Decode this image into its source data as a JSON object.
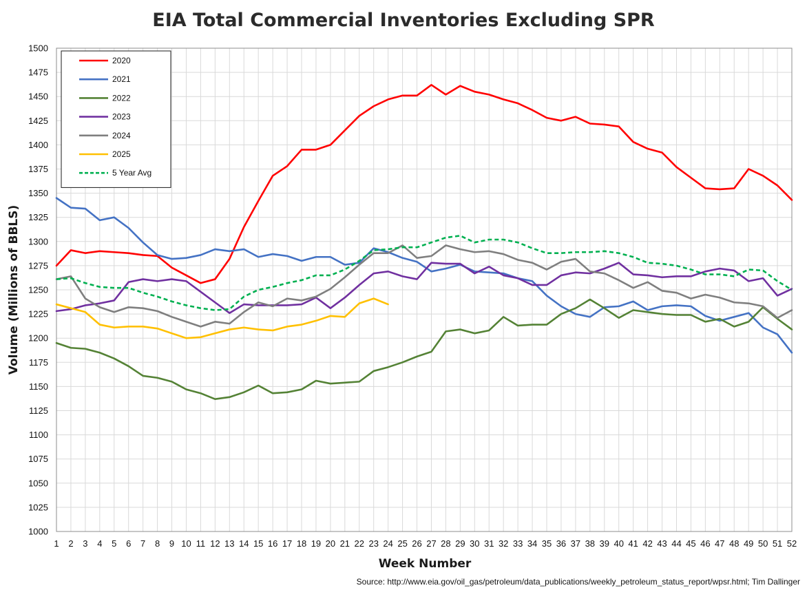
{
  "chart_data": {
    "type": "line",
    "title": "EIA Total Commercial Inventories Excluding SPR",
    "xlabel": "Week Number",
    "ylabel": "Volume (Millions of BBLS)",
    "source": "Source: http://www.eia.gov/oil_gas/petroleum/data_publications/weekly_petroleum_status_report/wpsr.html; Tim Dallinger",
    "xlim": [
      1,
      52
    ],
    "ylim": [
      1000,
      1500
    ],
    "ytick_step": 25,
    "grid": true,
    "legend_position": "top-left",
    "x": [
      1,
      2,
      3,
      4,
      5,
      6,
      7,
      8,
      9,
      10,
      11,
      12,
      13,
      14,
      15,
      16,
      17,
      18,
      19,
      20,
      21,
      22,
      23,
      24,
      25,
      26,
      27,
      28,
      29,
      30,
      31,
      32,
      33,
      34,
      35,
      36,
      37,
      38,
      39,
      40,
      41,
      42,
      43,
      44,
      45,
      46,
      47,
      48,
      49,
      50,
      51,
      52
    ],
    "series": [
      {
        "name": "2020",
        "color": "#ff0000",
        "dashed": false,
        "values": [
          1275,
          1291,
          1288,
          1290,
          1289,
          1288,
          1286,
          1285,
          1273,
          1265,
          1257,
          1261,
          1282,
          1315,
          1342,
          1368,
          1378,
          1395,
          1395,
          1400,
          1415,
          1430,
          1440,
          1447,
          1451,
          1451,
          1462,
          1452,
          1461,
          1455,
          1452,
          1447,
          1443,
          1436,
          1428,
          1425,
          1429,
          1422,
          1421,
          1419,
          1403,
          1396,
          1392,
          1377,
          1366,
          1355,
          1354,
          1355,
          1375,
          1368,
          1358,
          1343
        ]
      },
      {
        "name": "2021",
        "color": "#4472c4",
        "dashed": false,
        "values": [
          1345,
          1335,
          1334,
          1322,
          1325,
          1314,
          1299,
          1286,
          1282,
          1283,
          1286,
          1292,
          1290,
          1292,
          1284,
          1287,
          1285,
          1280,
          1284,
          1284,
          1276,
          1278,
          1293,
          1289,
          1283,
          1279,
          1269,
          1272,
          1276,
          1269,
          1268,
          1267,
          1262,
          1259,
          1244,
          1233,
          1225,
          1222,
          1232,
          1233,
          1238,
          1229,
          1233,
          1234,
          1233,
          1223,
          1218,
          1222,
          1226,
          1211,
          1204,
          1185
        ]
      },
      {
        "name": "2022",
        "color": "#548235",
        "dashed": false,
        "values": [
          1195,
          1190,
          1189,
          1185,
          1179,
          1171,
          1161,
          1159,
          1155,
          1147,
          1143,
          1137,
          1139,
          1144,
          1151,
          1143,
          1144,
          1147,
          1156,
          1153,
          1154,
          1155,
          1166,
          1170,
          1175,
          1181,
          1186,
          1207,
          1209,
          1205,
          1208,
          1222,
          1213,
          1214,
          1214,
          1225,
          1231,
          1240,
          1231,
          1221,
          1229,
          1227,
          1225,
          1224,
          1224,
          1217,
          1220,
          1212,
          1217,
          1232,
          1220,
          1209
        ]
      },
      {
        "name": "2023",
        "color": "#7030a0",
        "dashed": false,
        "values": [
          1228,
          1230,
          1234,
          1236,
          1239,
          1258,
          1261,
          1259,
          1261,
          1259,
          1248,
          1237,
          1226,
          1235,
          1234,
          1234,
          1234,
          1235,
          1242,
          1231,
          1242,
          1255,
          1267,
          1269,
          1264,
          1261,
          1278,
          1277,
          1277,
          1267,
          1274,
          1265,
          1262,
          1255,
          1255,
          1265,
          1268,
          1267,
          1272,
          1278,
          1266,
          1265,
          1263,
          1264,
          1264,
          1269,
          1272,
          1270,
          1259,
          1262,
          1244,
          1251
        ]
      },
      {
        "name": "2024",
        "color": "#7f7f7f",
        "dashed": false,
        "values": [
          1261,
          1264,
          1241,
          1232,
          1227,
          1232,
          1231,
          1228,
          1222,
          1217,
          1212,
          1217,
          1215,
          1227,
          1237,
          1233,
          1241,
          1239,
          1243,
          1251,
          1263,
          1276,
          1288,
          1288,
          1296,
          1283,
          1285,
          1296,
          1292,
          1289,
          1290,
          1287,
          1281,
          1278,
          1271,
          1279,
          1282,
          1269,
          1267,
          1260,
          1252,
          1258,
          1249,
          1247,
          1241,
          1245,
          1242,
          1237,
          1236,
          1233,
          1221,
          1229
        ]
      },
      {
        "name": "2025",
        "color": "#ffc000",
        "dashed": false,
        "values": [
          1235,
          1231,
          1227,
          1214,
          1211,
          1212,
          1212,
          1210,
          1205,
          1200,
          1201,
          1205,
          1209,
          1211,
          1209,
          1208,
          1212,
          1214,
          1218,
          1223,
          1222,
          1236,
          1241,
          1235,
          null,
          null,
          null,
          null,
          null,
          null,
          null,
          null,
          null,
          null,
          null,
          null,
          null,
          null,
          null,
          null,
          null,
          null,
          null,
          null,
          null,
          null,
          null,
          null,
          null,
          null,
          null,
          null
        ]
      },
      {
        "name": "5 Year Avg",
        "color": "#00b050",
        "dashed": true,
        "values": [
          1261,
          1262,
          1257,
          1253,
          1252,
          1252,
          1247,
          1243,
          1238,
          1234,
          1231,
          1229,
          1230,
          1243,
          1250,
          1253,
          1257,
          1260,
          1265,
          1265,
          1271,
          1280,
          1291,
          1292,
          1294,
          1294,
          1299,
          1304,
          1306,
          1299,
          1302,
          1302,
          1299,
          1293,
          1288,
          1288,
          1289,
          1289,
          1290,
          1288,
          1284,
          1278,
          1277,
          1275,
          1271,
          1266,
          1266,
          1264,
          1271,
          1270,
          1259,
          1250
        ]
      }
    ]
  }
}
